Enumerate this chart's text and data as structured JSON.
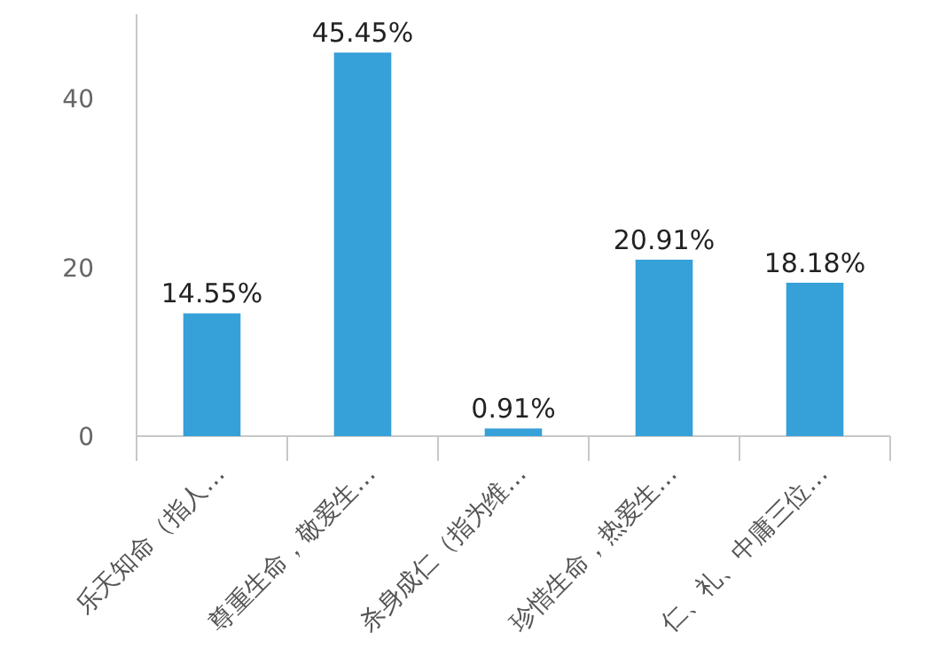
{
  "chart_data": {
    "type": "bar",
    "categories": [
      "乐天知命（指人…",
      "尊重生命，敬爱生…",
      "杀身成仁（指为维…",
      "珍惜生命，热爱生…",
      "仁、礼、中庸三位…"
    ],
    "values": [
      14.55,
      45.45,
      0.91,
      20.91,
      18.18
    ],
    "value_labels": [
      "14.55%",
      "45.45%",
      "0.91%",
      "20.91%",
      "18.18%"
    ],
    "color": "#36a0d8",
    "ylim": [
      0,
      50
    ],
    "yticks": [
      0,
      20,
      40
    ],
    "grid": false
  }
}
